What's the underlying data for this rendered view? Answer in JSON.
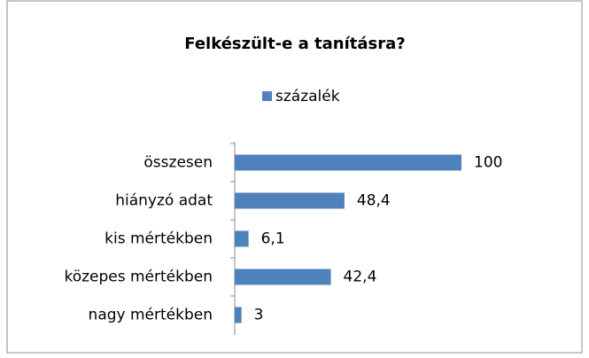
{
  "chart_data": {
    "type": "bar",
    "orientation": "horizontal",
    "title": "Felkészült-e a tanításra?",
    "categories": [
      "összesen",
      "hiányzó adat",
      "kis mértékben",
      "közepes mértékben",
      "nagy mértékben"
    ],
    "series": [
      {
        "name": "százalék",
        "color": "#4f81bd",
        "values": [
          100,
          48.4,
          6.1,
          42.4,
          3
        ],
        "value_labels": [
          "100",
          "48,4",
          "6,1",
          "42,4",
          "3"
        ]
      }
    ],
    "xlim": [
      0,
      100
    ],
    "legend": "top"
  }
}
